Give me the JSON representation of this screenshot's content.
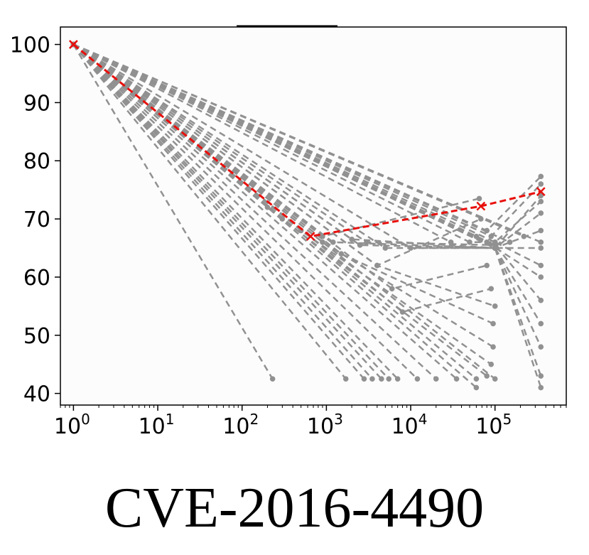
{
  "caption": "CVE-2016-4490",
  "colors": {
    "background_series": "#919191",
    "highlight_series": "#e8100c",
    "plot_background": "#fcfcfc"
  },
  "chart_data": {
    "type": "line",
    "title": "",
    "xlabel": "",
    "ylabel": "",
    "xscale": "log",
    "xlim": [
      0.7,
      700000
    ],
    "ylim": [
      38,
      103
    ],
    "x_ticks": [
      {
        "value": 1,
        "base": "10",
        "exp": "0"
      },
      {
        "value": 10,
        "base": "10",
        "exp": "1"
      },
      {
        "value": 100,
        "base": "10",
        "exp": "2"
      },
      {
        "value": 1000,
        "base": "10",
        "exp": "3"
      },
      {
        "value": 10000,
        "base": "10",
        "exp": "4"
      },
      {
        "value": 100000,
        "base": "10",
        "exp": "5"
      }
    ],
    "y_ticks": [
      40,
      50,
      60,
      70,
      80,
      90,
      100
    ],
    "grid": false,
    "legend": "none",
    "series": [
      {
        "role": "highlight",
        "marker": "x",
        "style": "dashed",
        "x": [
          1,
          650,
          68000,
          350000
        ],
        "y": [
          100,
          67,
          72.2,
          74.7
        ]
      },
      {
        "role": "background",
        "marker": "o",
        "style": "dashed",
        "x": [
          1,
          230
        ],
        "y": [
          100,
          42.5
        ]
      },
      {
        "role": "background",
        "marker": "o",
        "style": "dashed",
        "x": [
          1,
          1700
        ],
        "y": [
          100,
          42.5
        ]
      },
      {
        "role": "background",
        "marker": "o",
        "style": "dashed",
        "x": [
          1,
          2800
        ],
        "y": [
          100,
          42.5
        ]
      },
      {
        "role": "background",
        "marker": "o",
        "style": "dashed",
        "x": [
          1,
          3500
        ],
        "y": [
          100,
          42.5
        ]
      },
      {
        "role": "background",
        "marker": "o",
        "style": "dashed",
        "x": [
          1,
          4500
        ],
        "y": [
          100,
          42.5
        ]
      },
      {
        "role": "background",
        "marker": "o",
        "style": "dashed",
        "x": [
          1,
          5500
        ],
        "y": [
          100,
          42.5
        ]
      },
      {
        "role": "background",
        "marker": "o",
        "style": "dashed",
        "x": [
          1,
          7000
        ],
        "y": [
          100,
          42.5
        ]
      },
      {
        "role": "background",
        "marker": "o",
        "style": "dashed",
        "x": [
          1,
          12000
        ],
        "y": [
          100,
          42.5
        ]
      },
      {
        "role": "background",
        "marker": "o",
        "style": "dashed",
        "x": [
          1,
          20000
        ],
        "y": [
          100,
          42.5
        ]
      },
      {
        "role": "background",
        "marker": "o",
        "style": "dashed",
        "x": [
          1,
          35000
        ],
        "y": [
          100,
          42.5
        ]
      },
      {
        "role": "background",
        "marker": "o",
        "style": "dashed",
        "x": [
          1,
          60000
        ],
        "y": [
          100,
          42.5
        ]
      },
      {
        "role": "background",
        "marker": "o",
        "style": "dashed",
        "x": [
          1,
          100000
        ],
        "y": [
          100,
          42.5
        ]
      },
      {
        "role": "background",
        "marker": "o",
        "style": "dashed",
        "x": [
          1,
          200,
          60000
        ],
        "y": [
          100,
          72,
          41
        ]
      },
      {
        "role": "background",
        "marker": "o",
        "style": "dashed",
        "x": [
          1,
          300,
          80000
        ],
        "y": [
          100,
          70,
          43
        ]
      },
      {
        "role": "background",
        "marker": "o",
        "style": "dashed",
        "x": [
          1,
          500,
          90000
        ],
        "y": [
          100,
          68,
          45
        ]
      },
      {
        "role": "background",
        "marker": "o",
        "style": "dashed",
        "x": [
          1,
          900,
          95000
        ],
        "y": [
          100,
          66,
          48
        ]
      },
      {
        "role": "background",
        "marker": "o",
        "style": "dashed",
        "x": [
          1,
          1500,
          95000
        ],
        "y": [
          100,
          64,
          52
        ]
      },
      {
        "role": "background",
        "marker": "o",
        "style": "dashed",
        "x": [
          1,
          4000,
          100000
        ],
        "y": [
          100,
          62,
          55
        ]
      },
      {
        "role": "background",
        "marker": "o",
        "style": "dashed",
        "x": [
          1,
          30000
        ],
        "y": [
          100,
          66
        ]
      },
      {
        "role": "background",
        "marker": "o",
        "style": "dashed",
        "x": [
          1,
          60000
        ],
        "y": [
          100,
          67
        ]
      },
      {
        "role": "background",
        "marker": "o",
        "style": "dashed",
        "x": [
          1,
          100000
        ],
        "y": [
          100,
          65
        ]
      },
      {
        "role": "background",
        "marker": "o",
        "style": "dashed",
        "x": [
          1,
          150000
        ],
        "y": [
          100,
          66
        ]
      },
      {
        "role": "background",
        "marker": "o",
        "style": "dashed",
        "x": [
          1,
          220000
        ],
        "y": [
          100,
          67
        ]
      },
      {
        "role": "background",
        "marker": "o",
        "style": "dashed",
        "x": [
          1,
          350000
        ],
        "y": [
          100,
          66
        ]
      },
      {
        "role": "background",
        "marker": "o",
        "style": "dashed",
        "x": [
          1,
          2000,
          100000
        ],
        "y": [
          100,
          66.5,
          65
        ]
      },
      {
        "role": "background",
        "marker": "o",
        "style": "dashed",
        "x": [
          1,
          3000,
          100000
        ],
        "y": [
          100,
          66,
          65.5
        ]
      },
      {
        "role": "background",
        "marker": "o",
        "style": "dashed",
        "x": [
          1,
          900,
          65000
        ],
        "y": [
          100,
          67,
          73.5
        ]
      },
      {
        "role": "background",
        "marker": "o",
        "style": "dashed",
        "x": [
          1,
          1200,
          100000,
          350000
        ],
        "y": [
          100,
          66,
          65,
          74
        ]
      },
      {
        "role": "background",
        "marker": "o",
        "style": "dashed",
        "x": [
          1,
          2500,
          100000,
          350000
        ],
        "y": [
          100,
          65.5,
          65,
          71
        ]
      },
      {
        "role": "background",
        "marker": "o",
        "style": "dashed",
        "x": [
          1,
          5000,
          100000,
          350000
        ],
        "y": [
          100,
          65,
          65,
          68
        ]
      },
      {
        "role": "background",
        "marker": "o",
        "style": "dashed",
        "x": [
          1,
          10000,
          100000,
          350000
        ],
        "y": [
          100,
          65,
          65,
          65
        ]
      },
      {
        "role": "background",
        "marker": "o",
        "style": "dashed",
        "x": [
          1,
          50000,
          100000,
          350000
        ],
        "y": [
          100,
          66,
          66,
          62
        ]
      },
      {
        "role": "background",
        "marker": "o",
        "style": "dashed",
        "x": [
          1,
          80000,
          350000
        ],
        "y": [
          100,
          66,
          60
        ]
      },
      {
        "role": "background",
        "marker": "o",
        "style": "dashed",
        "x": [
          1,
          100000,
          350000
        ],
        "y": [
          100,
          65.5,
          56
        ]
      },
      {
        "role": "background",
        "marker": "o",
        "style": "dashed",
        "x": [
          1,
          100000,
          350000
        ],
        "y": [
          100,
          65,
          52
        ]
      },
      {
        "role": "background",
        "marker": "o",
        "style": "dashed",
        "x": [
          1,
          100000,
          350000
        ],
        "y": [
          100,
          65,
          48
        ]
      },
      {
        "role": "background",
        "marker": "o",
        "style": "dashed",
        "x": [
          1,
          100000,
          350000
        ],
        "y": [
          100,
          65,
          43
        ]
      },
      {
        "role": "background",
        "marker": "o",
        "style": "dashed",
        "x": [
          1,
          100000,
          350000
        ],
        "y": [
          100,
          65,
          41
        ]
      },
      {
        "role": "background",
        "marker": "o",
        "style": "dashed",
        "x": [
          1,
          80000,
          350000
        ],
        "y": [
          100,
          68,
          77.3
        ]
      },
      {
        "role": "background",
        "marker": "o",
        "style": "dashed",
        "x": [
          1,
          90000,
          350000
        ],
        "y": [
          100,
          67,
          76
        ]
      },
      {
        "role": "background",
        "marker": "o",
        "style": "dashed",
        "x": [
          1,
          100000,
          350000
        ],
        "y": [
          100,
          66,
          73
        ]
      },
      {
        "role": "background",
        "marker": "o",
        "style": "dashed",
        "x": [
          1,
          4000,
          68000
        ],
        "y": [
          100,
          62,
          70
        ]
      },
      {
        "role": "background",
        "marker": "o",
        "style": "dashed",
        "x": [
          1,
          6000,
          80000
        ],
        "y": [
          100,
          58,
          62
        ]
      },
      {
        "role": "background",
        "marker": "o",
        "style": "dashed",
        "x": [
          1,
          8000,
          90000
        ],
        "y": [
          100,
          54,
          58
        ]
      }
    ]
  }
}
